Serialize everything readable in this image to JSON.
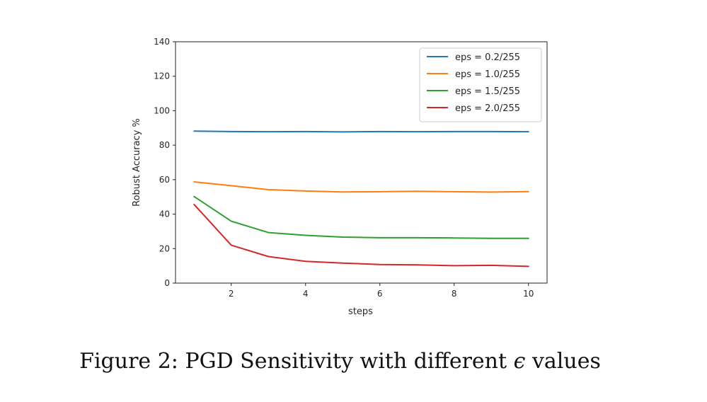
{
  "chart_data": {
    "type": "line",
    "xlabel": "steps",
    "ylabel": "Robust Accuracy %",
    "xlim": [
      0.5,
      10.5
    ],
    "ylim": [
      0,
      140
    ],
    "xticks": [
      2,
      4,
      6,
      8,
      10
    ],
    "yticks": [
      0,
      20,
      40,
      60,
      80,
      100,
      120,
      140
    ],
    "grid": false,
    "legend_position": "top-right",
    "x": [
      1,
      2,
      3,
      4,
      5,
      6,
      7,
      8,
      9,
      10
    ],
    "series": [
      {
        "name": "eps = 0.2/255",
        "color": "#1f77b4",
        "values": [
          88.2,
          87.9,
          87.8,
          87.9,
          87.7,
          87.9,
          87.8,
          87.9,
          87.9,
          87.8
        ]
      },
      {
        "name": "eps = 1.0/255",
        "color": "#ff7f0e",
        "values": [
          58.7,
          56.5,
          54.2,
          53.4,
          52.9,
          53.0,
          53.3,
          53.0,
          52.8,
          53.1
        ]
      },
      {
        "name": "eps = 1.5/255",
        "color": "#2ca02c",
        "values": [
          50.2,
          35.9,
          29.3,
          27.7,
          26.7,
          26.3,
          26.3,
          26.2,
          26.0,
          26.0
        ]
      },
      {
        "name": "eps = 2.0/255",
        "color": "#d62728",
        "values": [
          45.6,
          22.0,
          15.4,
          12.6,
          11.6,
          10.8,
          10.6,
          10.1,
          10.3,
          9.7
        ]
      }
    ]
  },
  "caption": {
    "prefix": "Figure 2: PGD Sensitivity with different ",
    "symbol": "ϵ",
    "suffix": " values"
  }
}
